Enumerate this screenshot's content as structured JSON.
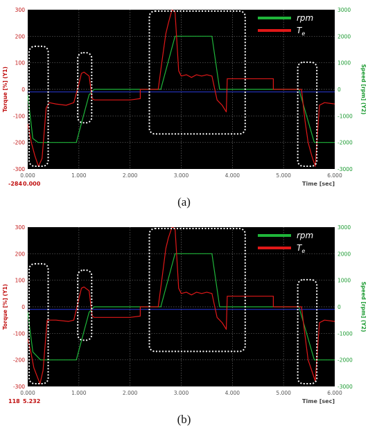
{
  "chart_data": [
    {
      "type": "line",
      "panel_label": "(a)",
      "y_left_label": "Torque [%] (Y1)",
      "y_right_label": "Speed [rpm] (Y2)",
      "xlabel": "Time [sec]",
      "xlim": [
        0,
        6
      ],
      "ylim_left": [
        -300,
        300
      ],
      "ylim_right": [
        -3000,
        3000
      ],
      "x_ticks": [
        "0.000",
        "1.000",
        "2.000",
        "3.000",
        "4.000",
        "5.000",
        "6.000"
      ],
      "y_left_ticks": [
        "300",
        "200",
        "100",
        "0",
        "-100",
        "-200",
        "-300"
      ],
      "y_right_ticks": [
        "3000",
        "2000",
        "1000",
        "0",
        "-1000",
        "-2000",
        "-3000"
      ],
      "cursor_readout": [
        "-284",
        "0.000"
      ],
      "legend": [
        "rpm",
        "T",
        "e"
      ],
      "grid": true,
      "colors": {
        "rpm": "#1fb53a",
        "torque": "#e01818",
        "reference": "#2a3bdc",
        "box": "#ffffff"
      },
      "series": [
        {
          "axis": "right",
          "color": "#1fb53a",
          "x": [
            0,
            0.1,
            0.2,
            0.95,
            1.2,
            1.3,
            2.6,
            2.88,
            3.6,
            3.75,
            5.3,
            5.6,
            6.0
          ],
          "y": [
            -200,
            -1850,
            -2000,
            -2000,
            -200,
            0,
            0,
            2000,
            2000,
            0,
            0,
            -2000,
            -2000
          ]
        },
        {
          "axis": "left",
          "color": "#e01818",
          "x": [
            0,
            0.07,
            0.14,
            0.21,
            0.28,
            0.36,
            0.42,
            0.55,
            0.75,
            0.9,
            1.0,
            1.05,
            1.1,
            1.2,
            1.26,
            1.3,
            1.6,
            2.0,
            2.2,
            2.2,
            2.55,
            2.62,
            2.7,
            2.75,
            2.82,
            2.88,
            2.95,
            3.0,
            3.1,
            3.2,
            3.3,
            3.4,
            3.5,
            3.6,
            3.7,
            3.8,
            3.88,
            3.9,
            4.2,
            4.8,
            4.8,
            5.1,
            5.35,
            5.42,
            5.48,
            5.55,
            5.62,
            5.7,
            5.8,
            6.0
          ],
          "y": [
            -130,
            -200,
            -250,
            -290,
            -260,
            -70,
            -50,
            -55,
            -60,
            -50,
            20,
            60,
            65,
            50,
            -35,
            -40,
            -40,
            -40,
            -35,
            0,
            0,
            100,
            210,
            250,
            300,
            290,
            70,
            50,
            55,
            45,
            55,
            50,
            55,
            50,
            -40,
            -60,
            -85,
            40,
            40,
            40,
            0,
            0,
            0,
            -120,
            -200,
            -250,
            -290,
            -60,
            -50,
            -55
          ]
        },
        {
          "axis": "left",
          "color": "#2a3bdc",
          "x": [
            0,
            6
          ],
          "y": [
            -10,
            -10
          ]
        }
      ],
      "highlight_boxes": [
        [
          0,
          0.4
        ],
        [
          0.95,
          1.25
        ],
        [
          2.35,
          4.25
        ],
        [
          5.25,
          5.65
        ]
      ]
    },
    {
      "type": "line",
      "panel_label": "(b)",
      "y_left_label": "Torque [%] (Y1)",
      "y_right_label": "Speed [rpm] (Y2)",
      "xlabel": "Time [sec]",
      "xlim": [
        0,
        6
      ],
      "ylim_left": [
        -300,
        300
      ],
      "ylim_right": [
        -3000,
        3000
      ],
      "x_ticks": [
        "0.000",
        "1.000",
        "2.000",
        "3.000",
        "4.000",
        "5.000",
        "6.000"
      ],
      "y_left_ticks": [
        "300",
        "200",
        "100",
        "0",
        "-100",
        "-200",
        "-300"
      ],
      "y_right_ticks": [
        "3000",
        "2000",
        "1000",
        "0",
        "-1000",
        "-2000",
        "-3000"
      ],
      "cursor_readout": [
        "118",
        "5.232"
      ],
      "legend": [
        "rpm",
        "T",
        "e"
      ],
      "grid": true,
      "colors": {
        "rpm": "#1fb53a",
        "torque": "#e01818",
        "reference": "#2a3bdc",
        "box": "#ffffff"
      },
      "series": [
        {
          "axis": "right",
          "color": "#1fb53a",
          "x": [
            0,
            0.1,
            0.25,
            0.95,
            1.2,
            1.3,
            2.6,
            2.88,
            3.6,
            3.75,
            5.3,
            5.6,
            6.0
          ],
          "y": [
            -200,
            -1700,
            -2000,
            -2000,
            -200,
            0,
            0,
            2000,
            2000,
            0,
            0,
            -2000,
            -2000
          ]
        },
        {
          "axis": "left",
          "color": "#e01818",
          "x": [
            0,
            0.07,
            0.12,
            0.18,
            0.24,
            0.3,
            0.38,
            0.55,
            0.8,
            0.9,
            1.0,
            1.05,
            1.1,
            1.2,
            1.26,
            1.3,
            1.6,
            2.0,
            2.2,
            2.2,
            2.55,
            2.62,
            2.7,
            2.75,
            2.82,
            2.88,
            2.95,
            3.0,
            3.1,
            3.2,
            3.3,
            3.4,
            3.5,
            3.6,
            3.7,
            3.8,
            3.88,
            3.9,
            4.2,
            4.8,
            4.8,
            5.1,
            5.35,
            5.42,
            5.48,
            5.55,
            5.62,
            5.7,
            5.8,
            6.0
          ],
          "y": [
            -120,
            -180,
            -230,
            -260,
            -290,
            -240,
            -50,
            -50,
            -55,
            -50,
            30,
            70,
            75,
            60,
            -35,
            -40,
            -40,
            -40,
            -35,
            0,
            0,
            100,
            220,
            260,
            300,
            295,
            70,
            50,
            55,
            45,
            55,
            50,
            55,
            50,
            -40,
            -60,
            -85,
            40,
            40,
            40,
            0,
            0,
            0,
            -110,
            -200,
            -240,
            -280,
            -60,
            -50,
            -55
          ]
        },
        {
          "axis": "left",
          "color": "#2a3bdc",
          "x": [
            0,
            6
          ],
          "y": [
            -10,
            -10
          ]
        }
      ],
      "highlight_boxes": [
        [
          0,
          0.4
        ],
        [
          0.95,
          1.25
        ],
        [
          2.35,
          4.25
        ],
        [
          5.25,
          5.65
        ]
      ]
    }
  ]
}
